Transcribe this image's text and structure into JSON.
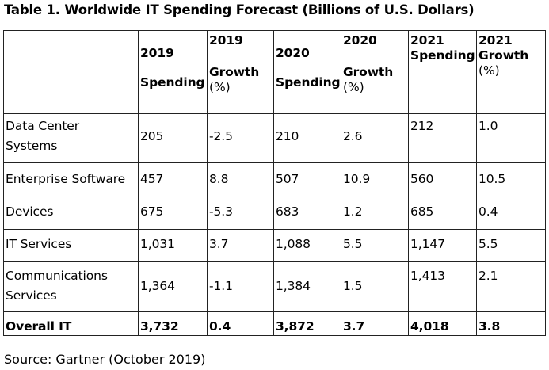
{
  "title": "Table 1. Worldwide IT Spending Forecast (Billions of U.S. Dollars)",
  "source": "Source: Gartner (October 2019)",
  "headers": [
    [
      "",
      ""
    ],
    [
      "2019",
      "Spending"
    ],
    [
      "2019",
      "Growth",
      "(%)"
    ],
    [
      "2020",
      "Spending"
    ],
    [
      "2020",
      "Growth",
      "(%)"
    ],
    [
      "2021",
      "Spending"
    ],
    [
      "2021",
      "Growth",
      "(%)"
    ]
  ],
  "rows": [
    {
      "label": [
        "Data Center",
        "Systems"
      ],
      "values": [
        "205",
        "-2.5",
        "210",
        "2.6",
        "212",
        "1.0"
      ]
    },
    {
      "label": [
        "Enterprise Software"
      ],
      "values": [
        "457",
        "8.8",
        "507",
        "10.9",
        "560",
        "10.5"
      ]
    },
    {
      "label": [
        "Devices"
      ],
      "values": [
        "675",
        "-5.3",
        "683",
        "1.2",
        "685",
        "0.4"
      ]
    },
    {
      "label": [
        "IT Services"
      ],
      "values": [
        "1,031",
        "3.7",
        "1,088",
        "5.5",
        "1,147",
        "5.5"
      ]
    },
    {
      "label": [
        "Communications",
        "Services"
      ],
      "values": [
        "1,364",
        "-1.1",
        "1,384",
        "1.5",
        "1,413",
        "2.1"
      ]
    },
    {
      "label": [
        "Overall IT"
      ],
      "values": [
        "3,732",
        "0.4",
        "3,872",
        "3.7",
        "4,018",
        "3.8"
      ]
    }
  ]
}
